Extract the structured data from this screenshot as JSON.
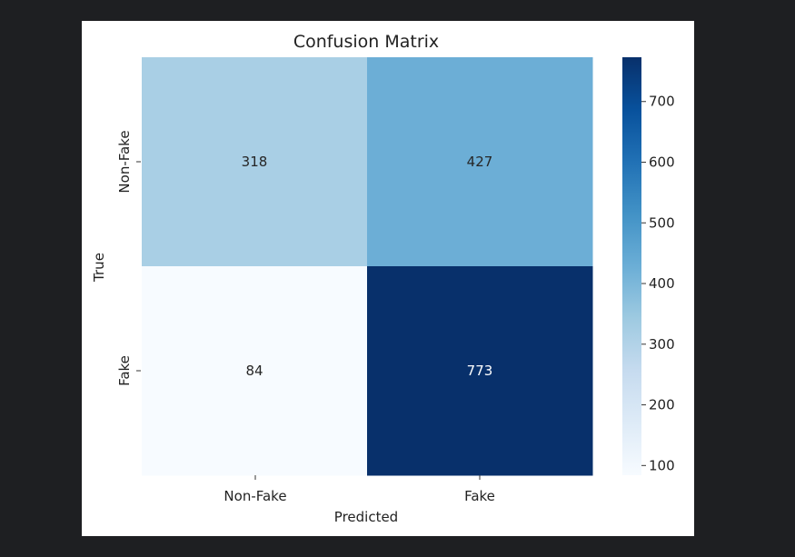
{
  "chart_data": {
    "type": "heatmap",
    "title": "Confusion Matrix",
    "xlabel": "Predicted",
    "ylabel": "True",
    "x_categories": [
      "Non-Fake",
      "Fake"
    ],
    "y_categories": [
      "Non-Fake",
      "Fake"
    ],
    "values": [
      [
        318,
        427
      ],
      [
        84,
        773
      ]
    ],
    "colormap": "Blues",
    "colorbar": {
      "range": [
        84,
        773
      ],
      "ticks": [
        100,
        200,
        300,
        400,
        500,
        600,
        700
      ],
      "colors": [
        "#f7fbff",
        "#deebf7",
        "#c6dbef",
        "#9ecae1",
        "#6baed6",
        "#4292c6",
        "#2171b5",
        "#08519c",
        "#08306b"
      ]
    }
  }
}
